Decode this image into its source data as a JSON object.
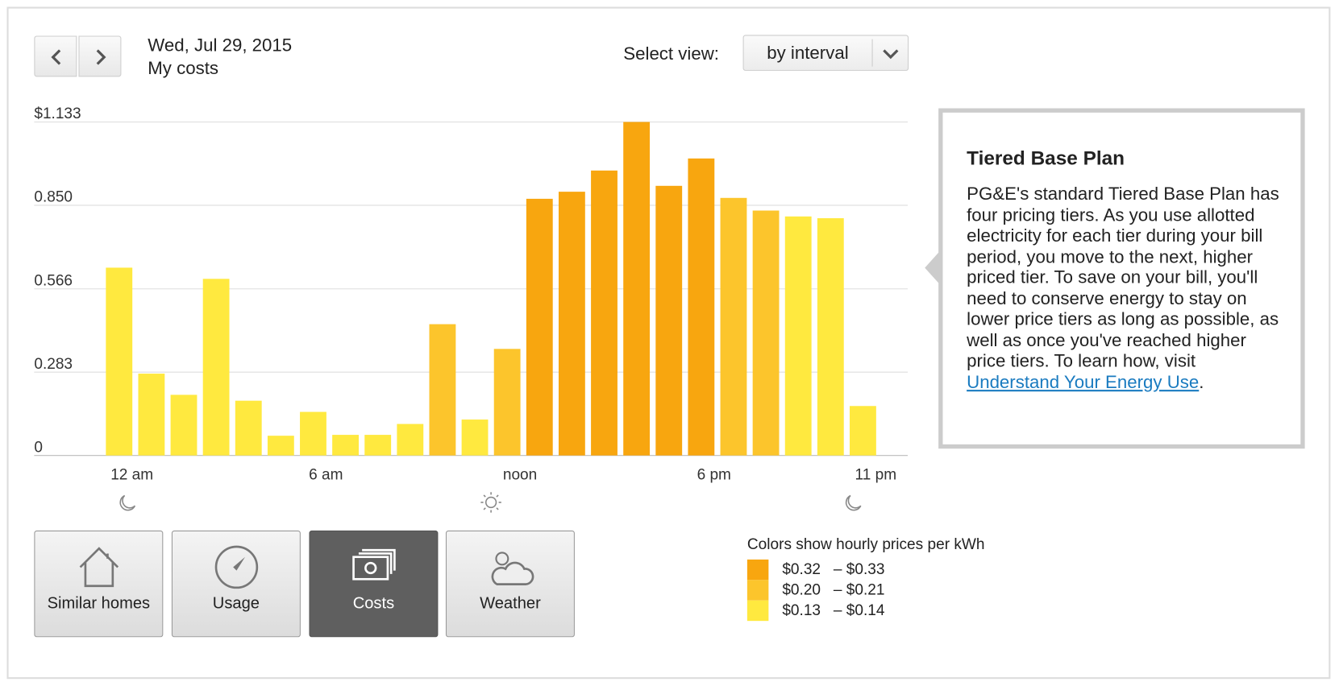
{
  "header": {
    "date": "Wed, Jul 29, 2015",
    "subtitle": "My costs"
  },
  "view_select": {
    "label": "Select view:",
    "value": "by interval"
  },
  "chart_data": {
    "type": "bar",
    "categories": [
      "12 am",
      null,
      null,
      null,
      null,
      null,
      "6 am",
      null,
      null,
      null,
      null,
      null,
      "noon",
      null,
      null,
      null,
      null,
      null,
      "6 pm",
      null,
      null,
      null,
      null,
      "11 pm"
    ],
    "values": [
      0.638,
      0.278,
      0.206,
      0.6,
      0.186,
      0.067,
      0.148,
      0.07,
      0.07,
      0.107,
      0.446,
      0.122,
      0.362,
      0.872,
      0.896,
      0.968,
      1.133,
      0.916,
      1.009,
      0.875,
      0.832,
      0.812,
      0.806,
      0.168
    ],
    "colors": [
      "#ffe93f",
      "#ffe93f",
      "#ffe93f",
      "#ffe93f",
      "#ffe93f",
      "#ffe93f",
      "#ffe93f",
      "#ffe93f",
      "#ffe93f",
      "#ffe93f",
      "#fcc52c",
      "#ffe93f",
      "#fcc52c",
      "#f8a60f",
      "#f8a60f",
      "#f8a60f",
      "#f8a60f",
      "#f8a60f",
      "#f8a60f",
      "#fcc52c",
      "#fcc52c",
      "#ffe93f",
      "#ffe93f",
      "#ffe93f"
    ],
    "ylim": [
      0,
      1.133
    ],
    "yticks": [
      0,
      {
        "value": 0.283,
        "label": "0.283"
      },
      {
        "value": 0.566,
        "label": "0.566"
      },
      {
        "value": 0.85,
        "label": "0.850"
      },
      {
        "value": 1.133,
        "label": "$1.133"
      }
    ],
    "grid": true,
    "legend": {
      "title": "Colors show hourly prices per kWh",
      "items": [
        {
          "color": "#f8a60f",
          "from": "$0.32",
          "to": "– $0.33"
        },
        {
          "color": "#fcc52c",
          "from": "$0.20",
          "to": "– $0.21"
        },
        {
          "color": "#ffe93f",
          "from": "$0.13",
          "to": "– $0.14"
        }
      ]
    }
  },
  "info_panel": {
    "title": "Tiered Base Plan",
    "text": "PG&E's standard Tiered Base Plan has four pricing tiers. As you use allotted electricity for each tier during your bill period, you move to the next, higher priced tier. To save on your bill, you'll need to conserve energy to stay on lower price tiers as long as possible, as well as once you've reached higher price tiers. To learn how, visit",
    "link": "Understand Your Energy Use",
    "end": "."
  },
  "tabs": [
    "Similar homes",
    "Usage",
    "Costs",
    "Weather"
  ]
}
